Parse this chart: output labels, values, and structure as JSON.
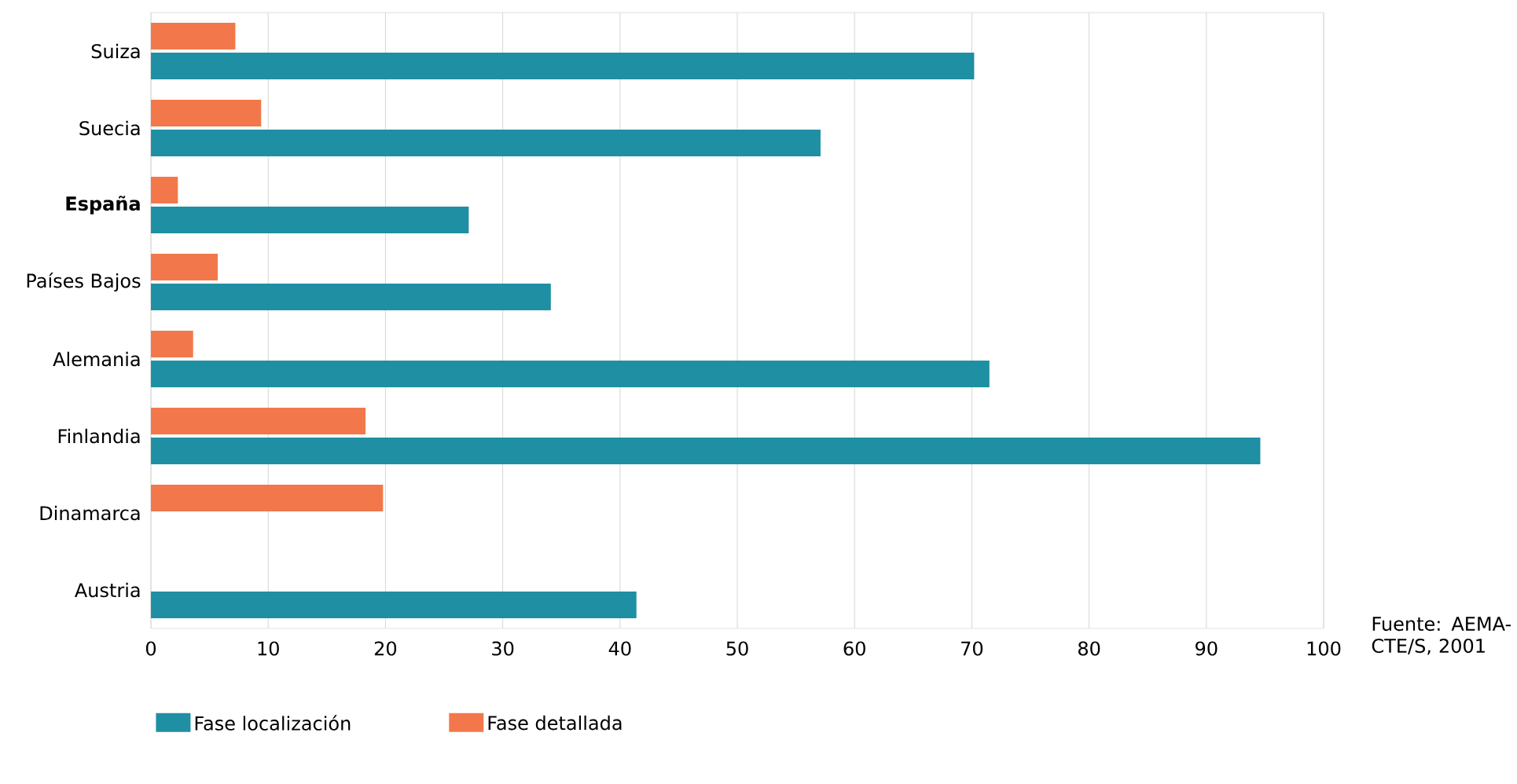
{
  "chart_data": {
    "type": "bar",
    "orientation": "horizontal",
    "categories": [
      "Suiza",
      "Suecia",
      "**España**",
      "Países Bajos",
      "Alemania",
      "Finlandia",
      "Dinamarca",
      "Austria"
    ],
    "series": [
      {
        "name": "Fase localización",
        "color": "#1f8fa3",
        "values": [
          70.2,
          57.1,
          27.1,
          34.1,
          71.5,
          94.6,
          null,
          41.4
        ]
      },
      {
        "name": "Fase detallada",
        "color": "#f2784b",
        "values": [
          7.2,
          9.4,
          2.3,
          5.7,
          3.6,
          18.3,
          19.8,
          null
        ]
      }
    ],
    "xlim": [
      0,
      100
    ],
    "xticks": [
      0,
      10,
      20,
      30,
      40,
      50,
      60,
      70,
      80,
      90,
      100
    ],
    "grid": "x",
    "legend": "bottom left",
    "annotations": [
      "Fuente: AEMA-CTE/S, 2001"
    ]
  }
}
